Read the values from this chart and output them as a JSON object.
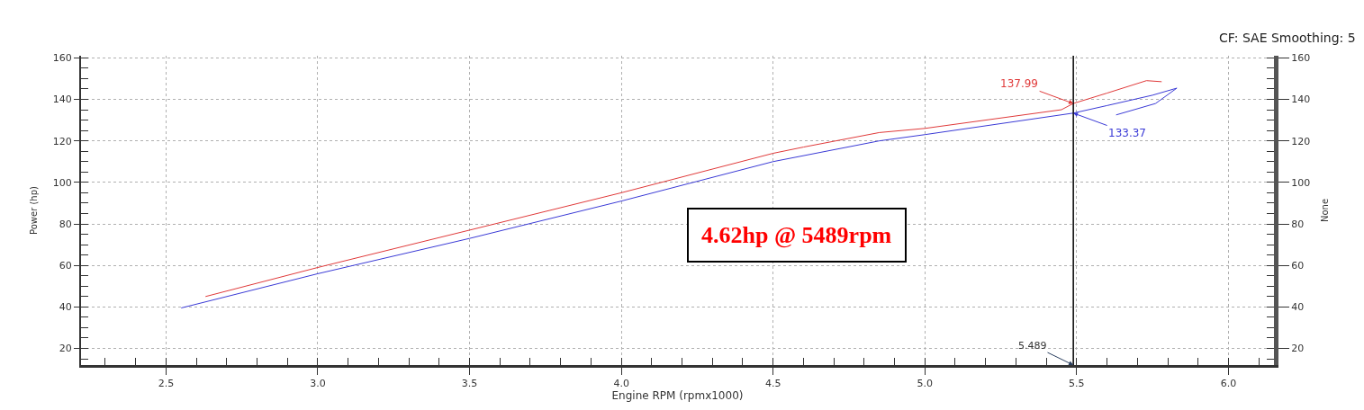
{
  "chart_data": {
    "type": "line",
    "subtitle": "CF: SAE Smoothing: 5",
    "xlabel": "Engine RPM (rpmx1000)",
    "ylabel": "Power (hp)",
    "y2label": "None",
    "series": [
      {
        "color": "#e03a3a",
        "x": [
          2.63,
          3.0,
          3.5,
          4.0,
          4.5,
          4.6,
          4.85,
          5.0,
          5.45,
          5.489,
          5.6,
          5.73,
          5.78
        ],
        "values": [
          45,
          59,
          77,
          95,
          114,
          117,
          124,
          126,
          135,
          137.99,
          143,
          149,
          148.5
        ]
      },
      {
        "color": "#3a3ad6",
        "x": [
          2.55,
          3.0,
          3.5,
          4.0,
          4.5,
          4.85,
          5.0,
          5.489,
          5.6,
          5.75,
          5.83,
          5.76,
          5.63
        ],
        "values": [
          39.5,
          56,
          73,
          91,
          110,
          120,
          123,
          133.37,
          137,
          142,
          145.4,
          138,
          132.5
        ]
      }
    ],
    "xlim": [
      2.22,
      6.15
    ],
    "ylim": [
      12,
      161
    ],
    "xticks": [
      2.5,
      {
        "value": 3,
        "label": "3.0"
      },
      3.5,
      {
        "value": 4,
        "label": "4.0"
      },
      4.5,
      {
        "value": 5,
        "label": "5.0"
      },
      5.5,
      {
        "value": 6,
        "label": "6.0"
      }
    ],
    "yticks": [
      20,
      40,
      60,
      80,
      100,
      120,
      140,
      160
    ],
    "y2lim": [
      12,
      161
    ],
    "y2ticks": [
      20,
      40,
      60,
      80,
      100,
      120,
      140,
      160
    ],
    "ref_lines": [
      {
        "axis": "x",
        "value": 5.489,
        "label": "5.489",
        "color": "#000000"
      }
    ],
    "annotations": [
      {
        "text": "137.99",
        "x": 5.489,
        "y": 137.99
      },
      {
        "text": "133.37",
        "x": 5.489,
        "y": 133.37
      },
      "4.62hp @ 5489rpm"
    ],
    "grid": true,
    "marker": "none",
    "line_style": "solid"
  }
}
